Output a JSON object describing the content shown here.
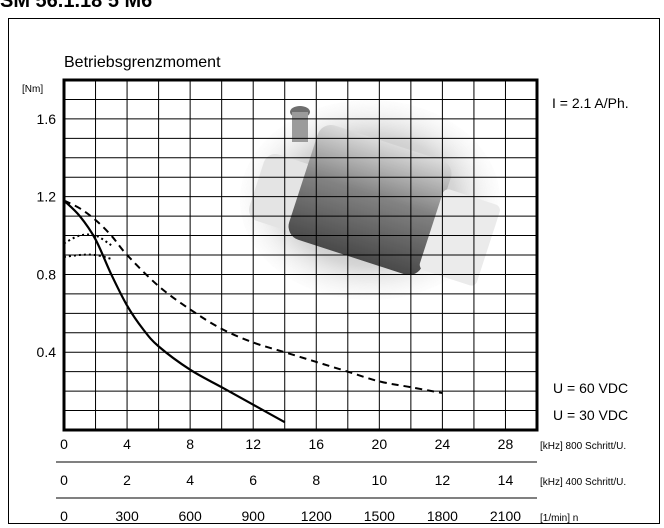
{
  "page": {
    "title": "SM 56.1.18 5 M6"
  },
  "chart_data": {
    "type": "line",
    "title": "Betriebsgrenzmoment",
    "ylabel": "[Nm]",
    "ylim": [
      0,
      1.8
    ],
    "xlim": [
      0,
      30
    ],
    "grid": true,
    "yticks": [
      {
        "value": 0.4,
        "label": "0.4"
      },
      {
        "value": 0.8,
        "label": "0.8"
      },
      {
        "value": 1.2,
        "label": "1.2"
      },
      {
        "value": 1.6,
        "label": "1.6"
      }
    ],
    "x_axes": [
      {
        "unit_label": "[kHz] 800 Schritt/U.",
        "ticks": [
          {
            "value": 0,
            "label": "0"
          },
          {
            "value": 4,
            "label": "4"
          },
          {
            "value": 8,
            "label": "8"
          },
          {
            "value": 12,
            "label": "12"
          },
          {
            "value": 16,
            "label": "16"
          },
          {
            "value": 20,
            "label": "20"
          },
          {
            "value": 24,
            "label": "24"
          },
          {
            "value": 28,
            "label": "28"
          }
        ]
      },
      {
        "unit_label": "[kHz] 400 Schritt/U.",
        "ticks": [
          {
            "value": 0,
            "label": "0"
          },
          {
            "value": 4,
            "label": "2"
          },
          {
            "value": 8,
            "label": "4"
          },
          {
            "value": 12,
            "label": "6"
          },
          {
            "value": 16,
            "label": "8"
          },
          {
            "value": 20,
            "label": "10"
          },
          {
            "value": 24,
            "label": "12"
          },
          {
            "value": 28,
            "label": "14"
          }
        ]
      },
      {
        "unit_label": "[1/min] n",
        "ticks": [
          {
            "value": 0,
            "label": "0"
          },
          {
            "value": 4,
            "label": "300"
          },
          {
            "value": 8,
            "label": "600"
          },
          {
            "value": 12,
            "label": "900"
          },
          {
            "value": 16,
            "label": "1200"
          },
          {
            "value": 20,
            "label": "1500"
          },
          {
            "value": 24,
            "label": "1800"
          },
          {
            "value": 28,
            "label": "2100"
          }
        ]
      }
    ],
    "annotations": {
      "current": "I = 2.1 A/Ph.",
      "legend_60": "U = 60 VDC",
      "legend_30": "U = 30 VDC"
    },
    "series": [
      {
        "key": "u60",
        "style": "dashed",
        "points": [
          [
            0,
            1.18
          ],
          [
            1,
            1.14
          ],
          [
            2,
            1.08
          ],
          [
            3,
            1.0
          ],
          [
            4,
            0.9
          ],
          [
            6,
            0.74
          ],
          [
            8,
            0.62
          ],
          [
            10,
            0.52
          ],
          [
            12,
            0.45
          ],
          [
            14,
            0.4
          ],
          [
            16,
            0.35
          ],
          [
            18,
            0.3
          ],
          [
            20,
            0.25
          ],
          [
            22,
            0.22
          ],
          [
            24,
            0.19
          ]
        ]
      },
      {
        "key": "u30",
        "style": "solid",
        "points": [
          [
            0,
            1.18
          ],
          [
            1,
            1.1
          ],
          [
            2,
            0.98
          ],
          [
            3,
            0.8
          ],
          [
            4,
            0.64
          ],
          [
            5,
            0.52
          ],
          [
            6,
            0.43
          ],
          [
            8,
            0.31
          ],
          [
            10,
            0.22
          ],
          [
            12,
            0.13
          ],
          [
            14,
            0.04
          ]
        ]
      },
      {
        "key": "resonance_upper",
        "style": "dotted",
        "points": [
          [
            0,
            0.96
          ],
          [
            1,
            1.0
          ],
          [
            2,
            1.0
          ],
          [
            3,
            0.95
          ]
        ]
      },
      {
        "key": "resonance_lower",
        "style": "dotted",
        "points": [
          [
            0,
            0.89
          ],
          [
            1,
            0.9
          ],
          [
            2,
            0.9
          ],
          [
            3,
            0.88
          ]
        ]
      }
    ]
  }
}
